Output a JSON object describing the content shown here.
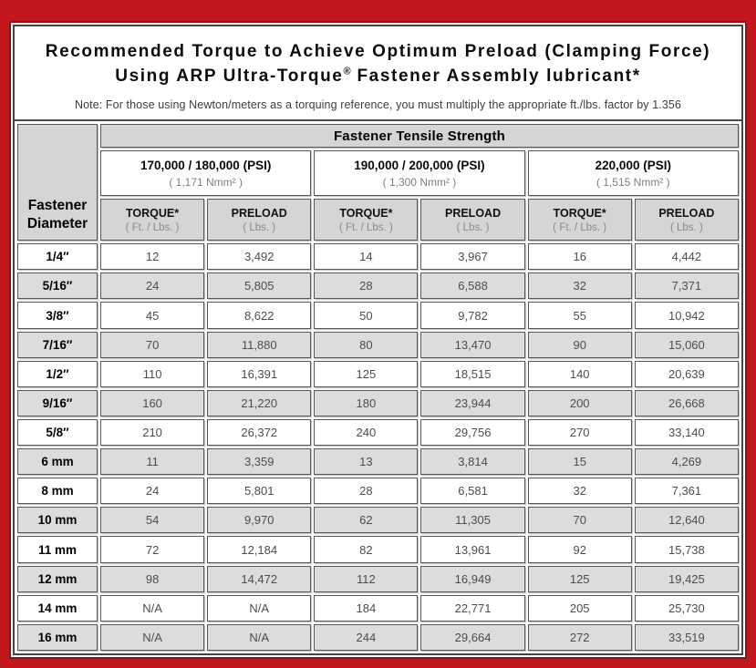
{
  "colors": {
    "frame_red": "#c3161d",
    "frame_inner_maroon": "#8a1318",
    "header_gray": "#d5d5d5",
    "row_alt_gray": "#dcdcdc",
    "border_dark": "#57575a"
  },
  "title": {
    "line1": "Recommended Torque to Achieve Optimum Preload (Clamping Force)",
    "line2_pre": "Using ARP Ultra-Torque",
    "line2_reg": "®",
    "line2_post": " Fastener Assembly lubricant*",
    "note": "Note: For those using Newton/meters as a torquing reference, you must multiply the appropriate ft./lbs. factor by 1.356"
  },
  "table": {
    "corner_line1": "Fastener",
    "corner_line2": "Diameter",
    "tensile_header": "Fastener Tensile Strength",
    "groups": [
      {
        "psi": "170,000 / 180,000 (PSI)",
        "nmm": "( 1,171 Nmm² )"
      },
      {
        "psi": "190,000 / 200,000 (PSI)",
        "nmm": "( 1,300 Nmm² )"
      },
      {
        "psi": "220,000 (PSI)",
        "nmm": "( 1,515 Nmm² )"
      }
    ],
    "torque_label": "TORQUE*",
    "torque_sub": "( Ft. / Lbs. )",
    "preload_label": "PRELOAD",
    "preload_sub": "( Lbs. )",
    "rows": [
      {
        "diameter": "1/4″",
        "values": [
          "12",
          "3,492",
          "14",
          "3,967",
          "16",
          "4,442"
        ]
      },
      {
        "diameter": "5/16″",
        "values": [
          "24",
          "5,805",
          "28",
          "6,588",
          "32",
          "7,371"
        ]
      },
      {
        "diameter": "3/8″",
        "values": [
          "45",
          "8,622",
          "50",
          "9,782",
          "55",
          "10,942"
        ]
      },
      {
        "diameter": "7/16″",
        "values": [
          "70",
          "11,880",
          "80",
          "13,470",
          "90",
          "15,060"
        ]
      },
      {
        "diameter": "1/2″",
        "values": [
          "110",
          "16,391",
          "125",
          "18,515",
          "140",
          "20,639"
        ]
      },
      {
        "diameter": "9/16″",
        "values": [
          "160",
          "21,220",
          "180",
          "23,944",
          "200",
          "26,668"
        ]
      },
      {
        "diameter": "5/8″",
        "values": [
          "210",
          "26,372",
          "240",
          "29,756",
          "270",
          "33,140"
        ]
      },
      {
        "diameter": "6 mm",
        "values": [
          "11",
          "3,359",
          "13",
          "3,814",
          "15",
          "4,269"
        ]
      },
      {
        "diameter": "8 mm",
        "values": [
          "24",
          "5,801",
          "28",
          "6,581",
          "32",
          "7,361"
        ]
      },
      {
        "diameter": "10 mm",
        "values": [
          "54",
          "9,970",
          "62",
          "11,305",
          "70",
          "12,640"
        ]
      },
      {
        "diameter": "11 mm",
        "values": [
          "72",
          "12,184",
          "82",
          "13,961",
          "92",
          "15,738"
        ]
      },
      {
        "diameter": "12 mm",
        "values": [
          "98",
          "14,472",
          "112",
          "16,949",
          "125",
          "19,425"
        ]
      },
      {
        "diameter": "14 mm",
        "values": [
          "N/A",
          "N/A",
          "184",
          "22,771",
          "205",
          "25,730"
        ]
      },
      {
        "diameter": "16 mm",
        "values": [
          "N/A",
          "N/A",
          "244",
          "29,664",
          "272",
          "33,519"
        ]
      }
    ]
  }
}
